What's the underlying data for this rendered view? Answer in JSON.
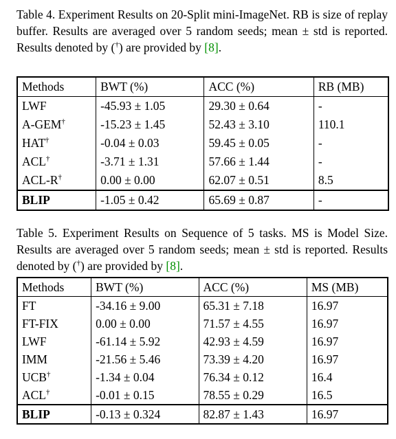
{
  "table4": {
    "caption_a": "Table 4. Experiment Results on 20-Split mini-ImageNet. RB is size of replay buffer. Results are averaged over 5 random seeds; mean ± std is reported. Results denoted by (",
    "caption_dagger": "†",
    "caption_b": ") are provided by ",
    "caption_ref": "[8]",
    "caption_c": ".",
    "headers": [
      "Methods",
      "BWT (%)",
      "ACC (%)",
      "RB (MB)"
    ],
    "rows": [
      {
        "method": "LWF",
        "dagger": "",
        "bwt": "-45.93 ± 1.05",
        "acc": "29.30 ± 0.64",
        "extra": "-"
      },
      {
        "method": "A-GEM",
        "dagger": "†",
        "bwt": "-15.23 ± 1.45",
        "acc": "52.43 ± 3.10",
        "extra": "110.1"
      },
      {
        "method": "HAT",
        "dagger": "†",
        "bwt": "-0.04 ± 0.03",
        "acc": "59.45 ± 0.05",
        "extra": "-"
      },
      {
        "method": "ACL",
        "dagger": "†",
        "bwt": "-3.71 ± 1.31",
        "acc": "57.66 ± 1.44",
        "extra": "-"
      },
      {
        "method": "ACL-R",
        "dagger": "†",
        "bwt": "0.00 ± 0.00",
        "acc": "62.07 ± 0.51",
        "extra": "8.5"
      },
      {
        "method": "BLIP",
        "dagger": "",
        "bwt": "-1.05 ± 0.42",
        "acc": "65.69 ± 0.87",
        "extra": "-"
      }
    ]
  },
  "table5": {
    "caption_a": "Table 5. Experiment Results on Sequence of 5 tasks. MS is Model Size. Results are averaged over 5 random seeds; mean ± std is reported. Results denoted by (",
    "caption_dagger": "†",
    "caption_b": ") are provided by ",
    "caption_ref": "[8]",
    "caption_c": ".",
    "headers": [
      "Methods",
      "BWT (%)",
      "ACC (%)",
      "MS (MB)"
    ],
    "rows": [
      {
        "method": "FT",
        "dagger": "",
        "bwt": "-34.16 ± 9.00",
        "acc": "65.31 ± 7.18",
        "extra": "16.97"
      },
      {
        "method": "FT-FIX",
        "dagger": "",
        "bwt": "0.00 ± 0.00",
        "acc": "71.57 ± 4.55",
        "extra": "16.97"
      },
      {
        "method": "LWF",
        "dagger": "",
        "bwt": "-61.14 ± 5.92",
        "acc": "42.93 ± 4.59",
        "extra": "16.97"
      },
      {
        "method": "IMM",
        "dagger": "",
        "bwt": "-21.56 ± 5.46",
        "acc": "73.39 ± 4.20",
        "extra": "16.97"
      },
      {
        "method": "UCB",
        "dagger": "†",
        "bwt": "-1.34 ± 0.04",
        "acc": "76.34 ± 0.12",
        "extra": "16.4"
      },
      {
        "method": "ACL",
        "dagger": "†",
        "bwt": "-0.01 ± 0.15",
        "acc": "78.55 ± 0.29",
        "extra": "16.5"
      },
      {
        "method": "BLIP",
        "dagger": "",
        "bwt": "-0.13 ± 0.324",
        "acc": "82.87 ± 1.43",
        "extra": "16.97"
      }
    ]
  }
}
